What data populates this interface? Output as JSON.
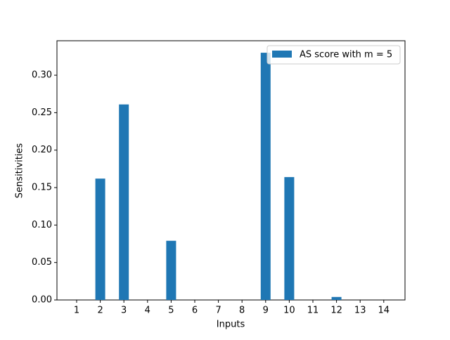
{
  "chart_data": {
    "type": "bar",
    "xlabel": "Inputs",
    "ylabel": "Sensitivities",
    "categories": [
      "1",
      "2",
      "3",
      "4",
      "5",
      "6",
      "7",
      "8",
      "9",
      "10",
      "11",
      "12",
      "13",
      "14"
    ],
    "series": [
      {
        "name": "AS score with m = 5",
        "color": "#1f77b4",
        "values": [
          0,
          0.162,
          0.261,
          0,
          0.079,
          0,
          0,
          0,
          0.33,
          0.164,
          0,
          0.004,
          0,
          0
        ]
      }
    ],
    "ylim": [
      0,
      0.346
    ],
    "yticks": [
      {
        "value": 0,
        "label": "0.00"
      },
      {
        "value": 0.05,
        "label": "0.05"
      },
      {
        "value": 0.1,
        "label": "0.10"
      },
      {
        "value": 0.15,
        "label": "0.15"
      },
      {
        "value": 0.2,
        "label": "0.20"
      },
      {
        "value": 0.25,
        "label": "0.25"
      },
      {
        "value": 0.3,
        "label": "0.30"
      }
    ],
    "legend": "upper right"
  }
}
